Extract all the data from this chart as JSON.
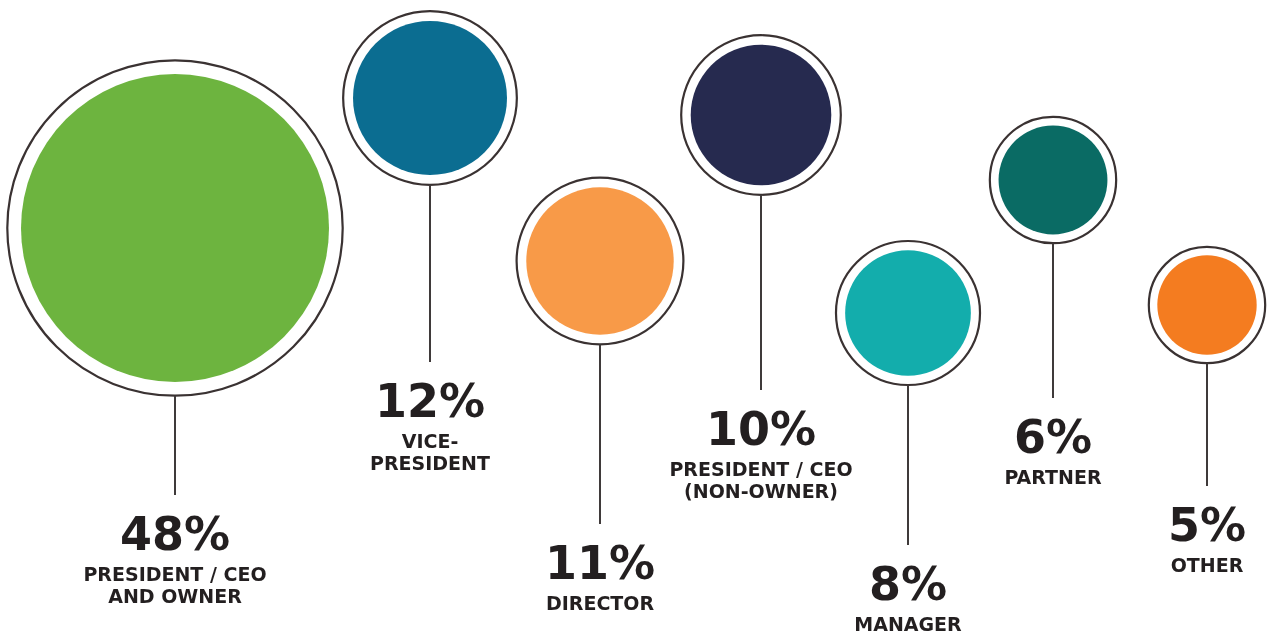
{
  "chart_data": {
    "type": "other",
    "categories": [
      "PRESIDENT / CEO AND OWNER",
      "VICE-PRESIDENT",
      "DIRECTOR",
      "PRESIDENT / CEO (NON-OWNER)",
      "MANAGER",
      "PARTNER",
      "OTHER"
    ],
    "values": [
      48,
      12,
      11,
      10,
      8,
      6,
      5
    ],
    "value_labels": [
      "48%",
      "12%",
      "11%",
      "10%",
      "8%",
      "6%",
      "5%"
    ],
    "colors": [
      "#6db43f",
      "#0b6d91",
      "#f89a48",
      "#262a4f",
      "#13adac",
      "#0a6b64",
      "#f47c20"
    ]
  }
}
